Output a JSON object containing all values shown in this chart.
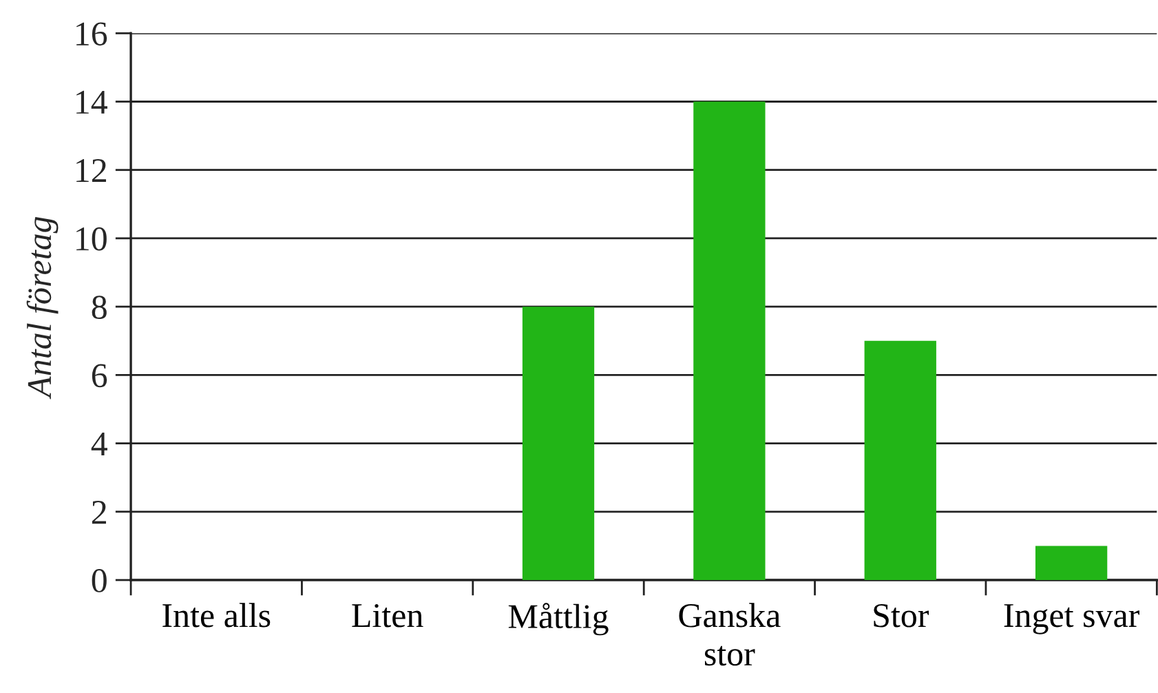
{
  "chart_data": {
    "type": "bar",
    "ylabel": "Antal företag",
    "categories": [
      "Inte alls",
      "Liten",
      "Måttlig",
      "Ganska\nstor",
      "Stor",
      "Inget svar"
    ],
    "values": [
      0,
      0,
      8,
      14,
      7,
      1
    ],
    "color": "#22b517",
    "ylim": [
      0,
      16
    ],
    "yticks": [
      0,
      2,
      4,
      6,
      8,
      10,
      12,
      14,
      16
    ],
    "grid": "y"
  }
}
